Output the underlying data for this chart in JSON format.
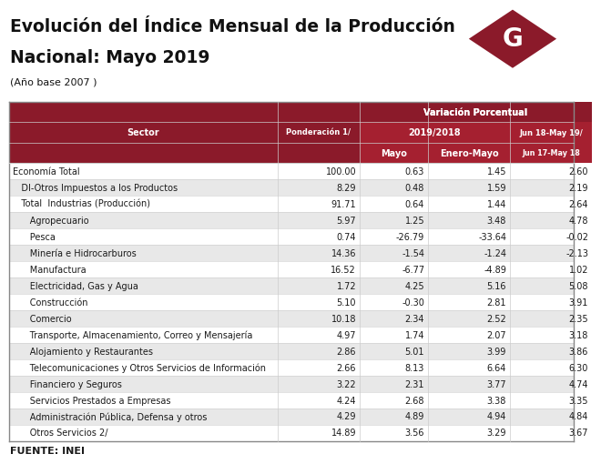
{
  "title_line1": "Evolución del Índice Mensual de la Producción",
  "title_line2": "Nacional: Mayo 2019",
  "subtitle": "(Año base 2007 )",
  "header_main": "Variación Porcentual",
  "header_sub1": "2019/2018",
  "header_sub2": "Jun 18-May 19/",
  "col_sector": "Sector",
  "col_pond": "Ponderación 1/",
  "col_mayo": "Mayo",
  "col_enero_mayo": "Enero-Mayo",
  "col_jun": "Jun 17-May 18",
  "footer": "FUENTE: INEI",
  "rows": [
    {
      "sector": "Economía Total",
      "pond": "100.00",
      "mayo": "0.63",
      "enero_mayo": "1.45",
      "jun": "2.60",
      "indent": 0,
      "bold": false,
      "shade": false
    },
    {
      "sector": "   DI-Otros Impuestos a los Productos",
      "pond": "8.29",
      "mayo": "0.48",
      "enero_mayo": "1.59",
      "jun": "2.19",
      "indent": 0,
      "bold": false,
      "shade": true
    },
    {
      "sector": "   Total  Industrias (Producción)",
      "pond": "91.71",
      "mayo": "0.64",
      "enero_mayo": "1.44",
      "jun": "2.64",
      "indent": 0,
      "bold": false,
      "shade": false
    },
    {
      "sector": "      Agropecuario",
      "pond": "5.97",
      "mayo": "1.25",
      "enero_mayo": "3.48",
      "jun": "4.78",
      "indent": 0,
      "bold": false,
      "shade": true
    },
    {
      "sector": "      Pesca",
      "pond": "0.74",
      "mayo": "-26.79",
      "enero_mayo": "-33.64",
      "jun": "-0.02",
      "indent": 0,
      "bold": false,
      "shade": false
    },
    {
      "sector": "      Minería e Hidrocarburos",
      "pond": "14.36",
      "mayo": "-1.54",
      "enero_mayo": "-1.24",
      "jun": "-2.13",
      "indent": 0,
      "bold": false,
      "shade": true
    },
    {
      "sector": "      Manufactura",
      "pond": "16.52",
      "mayo": "-6.77",
      "enero_mayo": "-4.89",
      "jun": "1.02",
      "indent": 0,
      "bold": false,
      "shade": false
    },
    {
      "sector": "      Electricidad, Gas y Agua",
      "pond": "1.72",
      "mayo": "4.25",
      "enero_mayo": "5.16",
      "jun": "5.08",
      "indent": 0,
      "bold": false,
      "shade": true
    },
    {
      "sector": "      Construcción",
      "pond": "5.10",
      "mayo": "-0.30",
      "enero_mayo": "2.81",
      "jun": "3.91",
      "indent": 0,
      "bold": false,
      "shade": false
    },
    {
      "sector": "      Comercio",
      "pond": "10.18",
      "mayo": "2.34",
      "enero_mayo": "2.52",
      "jun": "2.35",
      "indent": 0,
      "bold": false,
      "shade": true
    },
    {
      "sector": "      Transporte, Almacenamiento, Correo y Mensajería",
      "pond": "4.97",
      "mayo": "1.74",
      "enero_mayo": "2.07",
      "jun": "3.18",
      "indent": 0,
      "bold": false,
      "shade": false
    },
    {
      "sector": "      Alojamiento y Restaurantes",
      "pond": "2.86",
      "mayo": "5.01",
      "enero_mayo": "3.99",
      "jun": "3.86",
      "indent": 0,
      "bold": false,
      "shade": true
    },
    {
      "sector": "      Telecomunicaciones y Otros Servicios de Información",
      "pond": "2.66",
      "mayo": "8.13",
      "enero_mayo": "6.64",
      "jun": "6.30",
      "indent": 0,
      "bold": false,
      "shade": false
    },
    {
      "sector": "      Financiero y Seguros",
      "pond": "3.22",
      "mayo": "2.31",
      "enero_mayo": "3.77",
      "jun": "4.74",
      "indent": 0,
      "bold": false,
      "shade": true
    },
    {
      "sector": "      Servicios Prestados a Empresas",
      "pond": "4.24",
      "mayo": "2.68",
      "enero_mayo": "3.38",
      "jun": "3.35",
      "indent": 0,
      "bold": false,
      "shade": false
    },
    {
      "sector": "      Administración Pública, Defensa y otros",
      "pond": "4.29",
      "mayo": "4.89",
      "enero_mayo": "4.94",
      "jun": "4.84",
      "indent": 0,
      "bold": false,
      "shade": true
    },
    {
      "sector": "      Otros Servicios 2/",
      "pond": "14.89",
      "mayo": "3.56",
      "enero_mayo": "3.29",
      "jun": "3.67",
      "indent": 0,
      "bold": false,
      "shade": false
    }
  ],
  "color_header_dark": "#8B1A2A",
  "color_header_mid": "#A52030",
  "color_shade": "#E8E8E8",
  "color_white": "#FFFFFF",
  "color_text_header": "#FFFFFF",
  "color_text_body": "#1a1a1a",
  "color_title": "#111111",
  "color_logo_bg": "#8B1A2A",
  "color_border_outer": "#888888",
  "color_border_inner": "#cccccc"
}
